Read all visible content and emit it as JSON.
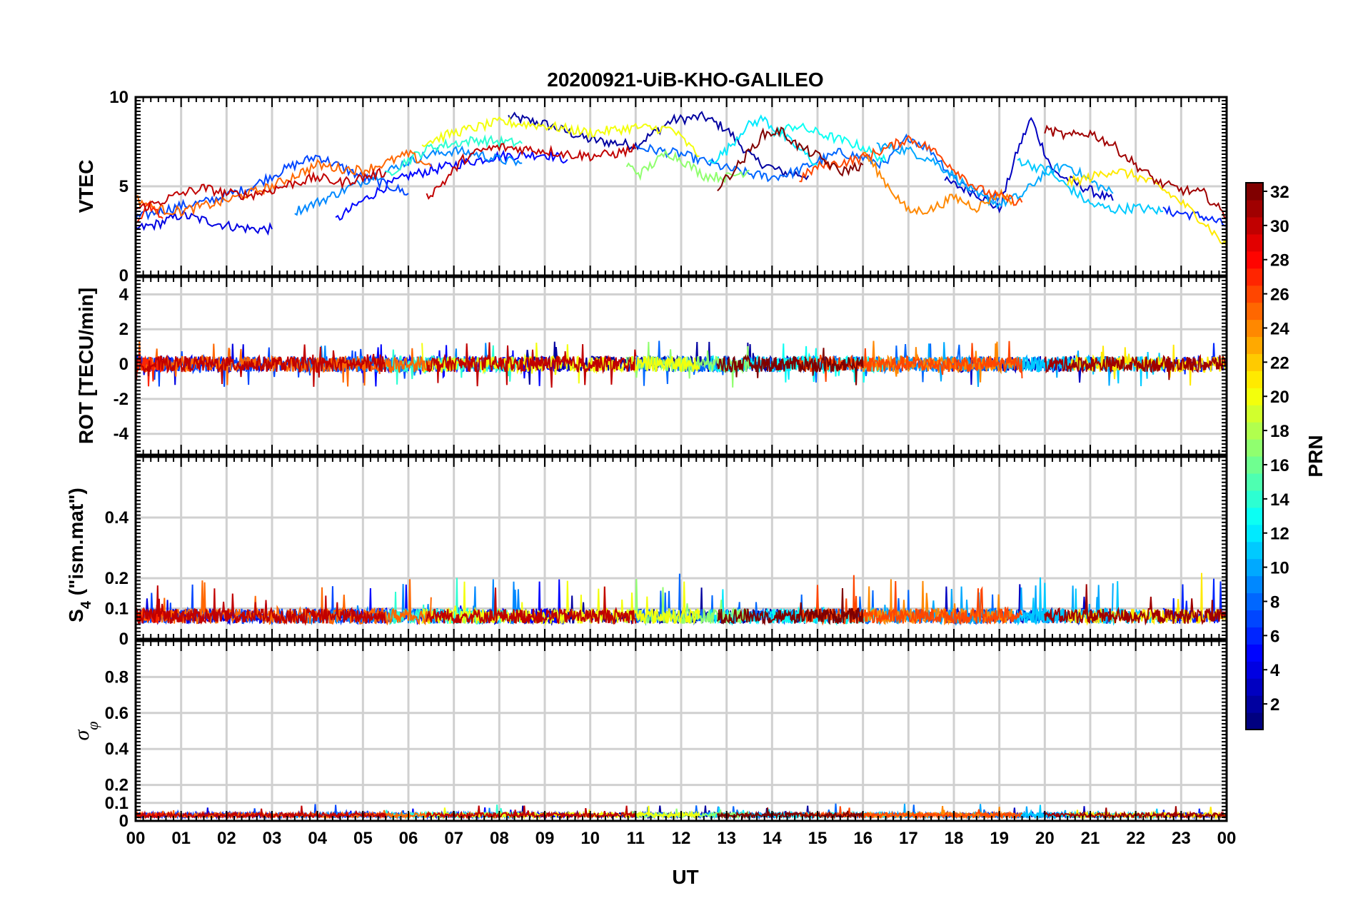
{
  "chart_data": {
    "type": "line",
    "title": "20200921-UiB-KHO-GALILEO",
    "xlabel": "UT",
    "x_tick_labels": [
      "00",
      "01",
      "02",
      "03",
      "04",
      "05",
      "06",
      "07",
      "08",
      "09",
      "10",
      "11",
      "12",
      "13",
      "14",
      "15",
      "16",
      "17",
      "18",
      "19",
      "20",
      "21",
      "22",
      "23",
      "00"
    ],
    "xlim": [
      0,
      24
    ],
    "grid": true,
    "colorbar": {
      "label": "PRN",
      "colormap": "jet",
      "range": [
        1,
        32
      ],
      "tick_labels": [
        "2",
        "4",
        "6",
        "8",
        "10",
        "12",
        "14",
        "16",
        "18",
        "20",
        "22",
        "24",
        "26",
        "28",
        "30",
        "32"
      ]
    },
    "panels": [
      {
        "id": "vtec",
        "ylabel": "VTEC",
        "ylim": [
          0,
          10
        ],
        "y_tick_labels": [
          "0",
          "5",
          "10"
        ],
        "series": [
          {
            "prn": 2,
            "x": [
              8.2,
              9,
              10,
              11,
              11.8,
              12.5,
              13,
              13.6,
              14.2,
              14.8
            ],
            "y": [
              8.9,
              8.5,
              7.6,
              7.3,
              8.7,
              8.9,
              8.2,
              6.5,
              5.8,
              5.6
            ]
          },
          {
            "prn": 3,
            "x": [
              17.8,
              18.5,
              19,
              19.4,
              19.7,
              19.9,
              20.2,
              20.8,
              21.5
            ],
            "y": [
              5.3,
              4.6,
              3.7,
              7.0,
              8.8,
              7.5,
              5.8,
              5.0,
              4.2
            ]
          },
          {
            "prn": 4,
            "x": [
              0,
              0.5,
              1,
              1.5,
              2,
              2.6,
              3.0
            ],
            "y": [
              2.6,
              2.9,
              3.4,
              3.1,
              2.8,
              2.6,
              2.6
            ]
          },
          {
            "prn": 5,
            "x": [
              4.4,
              5,
              5.5,
              6.0,
              6.5,
              7,
              8,
              9.0,
              9.5
            ],
            "y": [
              3.1,
              4.2,
              5.0,
              5.6,
              5.9,
              6.2,
              6.7,
              6.8,
              6.5
            ]
          },
          {
            "prn": 6,
            "x": [
              22.6,
              23,
              23.5,
              24
            ],
            "y": [
              3.6,
              3.5,
              3.3,
              2.8
            ]
          },
          {
            "prn": 7,
            "x": [
              0,
              0.5,
              1,
              1.5,
              2,
              2.5,
              3.0,
              3.5,
              4.0,
              4.5,
              5.0,
              5.5,
              6.0
            ],
            "y": [
              3.2,
              3.6,
              3.9,
              4.1,
              4.5,
              4.9,
              5.6,
              6.2,
              6.7,
              6.1,
              5.5,
              5.1,
              4.6
            ]
          },
          {
            "prn": 8,
            "x": [
              11,
              11.5,
              12,
              12.5,
              13,
              13.5,
              14,
              14.5,
              15,
              15.5,
              16,
              16.5,
              17,
              17.5,
              18,
              18.5,
              19
            ],
            "y": [
              7.2,
              7.0,
              6.8,
              6.4,
              6.0,
              5.7,
              5.5,
              5.8,
              6.4,
              6.9,
              6.6,
              6.2,
              7.8,
              7.0,
              5.5,
              4.6,
              4.4
            ]
          },
          {
            "prn": 9,
            "x": [
              3.5,
              4,
              4.5,
              5,
              5.5,
              6,
              6.5,
              7,
              7.5,
              8,
              8.5
            ],
            "y": [
              3.6,
              4.1,
              4.7,
              5.3,
              5.8,
              6.4,
              6.8,
              7.0,
              6.8,
              6.5,
              6.3
            ]
          },
          {
            "prn": 10,
            "x": [
              16.3,
              17,
              17.5,
              18,
              18.5,
              19,
              19.5,
              20,
              20.5,
              21.0,
              21.5
            ],
            "y": [
              7.3,
              7.0,
              6.5,
              5.6,
              4.5,
              4.0,
              4.5,
              5.8,
              6.2,
              5.3,
              4.6
            ]
          },
          {
            "prn": 11,
            "x": [
              19.4,
              20,
              20.5,
              21,
              21.5,
              22,
              22.6
            ],
            "y": [
              6.5,
              5.9,
              5.0,
              4.0,
              3.7,
              3.8,
              3.6
            ]
          },
          {
            "prn": 12,
            "x": [
              12.6,
              13,
              13.4,
              13.8,
              14.2,
              14.6,
              15
            ],
            "y": [
              6.3,
              7.0,
              8.3,
              8.8,
              7.9,
              7.1,
              6.2
            ]
          },
          {
            "prn": 13,
            "x": [
              14,
              14.5,
              15,
              15.5,
              16,
              16.5
            ],
            "y": [
              7.9,
              8.4,
              8.0,
              7.6,
              7.2,
              6.4
            ]
          },
          {
            "prn": 14,
            "x": [
              5.5,
              6,
              6.5,
              7,
              7.5,
              8,
              8.5
            ],
            "y": [
              5.6,
              6.5,
              7.2,
              7.4,
              7.6,
              7.5,
              7.4
            ]
          },
          {
            "prn": 17,
            "x": [
              10.8,
              11.1,
              11.4,
              11.7,
              12,
              12.5,
              13,
              13.5
            ],
            "y": [
              6.2,
              5.7,
              6.3,
              6.9,
              6.5,
              5.6,
              5.5,
              5.9
            ]
          },
          {
            "prn": 20,
            "x": [
              6.3,
              7,
              8,
              9,
              10,
              11,
              11.8,
              12.4
            ],
            "y": [
              7.4,
              8.0,
              8.6,
              8.4,
              8.0,
              8.3,
              8.2,
              6.7
            ]
          },
          {
            "prn": 21,
            "x": [
              20.5,
              21,
              21.5,
              22,
              22.5,
              23,
              23.5,
              24
            ],
            "y": [
              5.2,
              5.5,
              5.9,
              5.6,
              5.0,
              4.1,
              3.0,
              1.6
            ]
          },
          {
            "prn": 24,
            "x": [
              16,
              16.5,
              17,
              17.5,
              18,
              18.5,
              19,
              19.3
            ],
            "y": [
              7.0,
              5.2,
              3.6,
              3.7,
              4.4,
              3.8,
              4.6,
              4.2
            ]
          },
          {
            "prn": 25,
            "x": [
              0,
              0.5,
              1,
              1.5,
              2,
              2.5,
              3,
              3.5,
              4,
              4.5,
              5,
              5.5,
              6,
              6.5
            ],
            "y": [
              4.3,
              3.7,
              3.6,
              3.9,
              4.2,
              4.6,
              5.0,
              5.6,
              6.2,
              6.0,
              5.9,
              6.3,
              6.8,
              6.1
            ]
          },
          {
            "prn": 26,
            "x": [
              14.6,
              15,
              15.5,
              16,
              16.5,
              17,
              17.5,
              18,
              18.5,
              19,
              19.5
            ],
            "y": [
              5.4,
              6.1,
              6.3,
              6.6,
              7.1,
              7.7,
              7.1,
              6.0,
              4.9,
              4.4,
              4.1
            ]
          },
          {
            "prn": 27,
            "x": [
              0,
              0.3,
              0.6
            ],
            "y": [
              2.9,
              3.9,
              3.2
            ]
          },
          {
            "prn": 30,
            "x": [
              0,
              0.5,
              1,
              1.5,
              2,
              2.5,
              3,
              3.5,
              4,
              4.5,
              5,
              5.5
            ],
            "y": [
              3.7,
              4.1,
              4.6,
              4.9,
              4.6,
              4.5,
              4.8,
              5.2,
              5.5,
              5.2,
              5.5,
              5.8
            ]
          },
          {
            "prn": 30,
            "x": [
              6.4,
              6.8,
              7.2,
              7.6,
              8,
              8.5,
              9,
              9.5,
              10,
              10.5,
              11
            ],
            "y": [
              4.4,
              5.3,
              6.5,
              7.0,
              7.2,
              7.1,
              7.0,
              6.8,
              6.7,
              6.8,
              7.1
            ]
          },
          {
            "prn": 31,
            "x": [
              20,
              20.5,
              21,
              21.5,
              22,
              22.5,
              23,
              23.5,
              24
            ],
            "y": [
              8.2,
              7.8,
              8.0,
              7.3,
              6.2,
              5.2,
              4.8,
              4.6,
              3.3
            ]
          },
          {
            "prn": 32,
            "x": [
              12.8,
              13.3,
              13.8,
              14.2,
              14.6,
              15,
              15.5,
              16
            ],
            "y": [
              4.9,
              6.3,
              7.9,
              8.1,
              7.2,
              6.7,
              5.8,
              6.2
            ]
          }
        ]
      },
      {
        "id": "rot",
        "ylabel": "ROT [TECU/min]",
        "ylim": [
          -5.2,
          5
        ],
        "y_tick_labels": [
          "4",
          "2",
          "0",
          "-2",
          "-4"
        ]
      },
      {
        "id": "s4",
        "ylabel": "S4 (\"ism.mat\")",
        "ylim": [
          0,
          0.6
        ],
        "y_tick_labels": [
          "0",
          "0.1",
          "0.2",
          "0.4"
        ]
      },
      {
        "id": "sigma",
        "ylabel": "σφ",
        "ylim": [
          0,
          1.0
        ],
        "y_tick_labels": [
          "0",
          "0.1",
          "0.2",
          "0.4",
          "0.6",
          "0.8"
        ]
      }
    ]
  }
}
